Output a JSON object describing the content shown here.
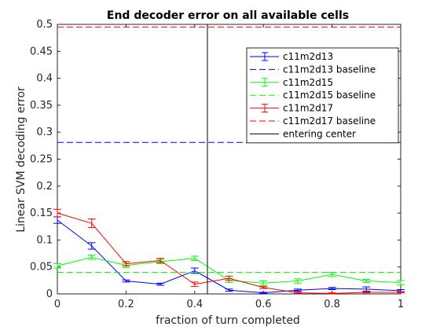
{
  "chart_data": {
    "type": "line",
    "title": "End decoder error on all available cells",
    "xlabel": "fraction of turn completed",
    "ylabel": "Linear SVM decoding error",
    "xlim": [
      0,
      1
    ],
    "ylim": [
      0,
      0.5
    ],
    "xticks": [
      "0",
      "0.2",
      "0.4",
      "0.6",
      "0.8",
      "1"
    ],
    "yticks": [
      "0",
      "0.05",
      "0.1",
      "0.15",
      "0.2",
      "0.25",
      "0.3",
      "0.35",
      "0.4",
      "0.45",
      "0.5"
    ],
    "grid": false,
    "legend_position": "top-right",
    "x": [
      0,
      0.1,
      0.2,
      0.3,
      0.4,
      0.5,
      0.6,
      0.7,
      0.8,
      0.9,
      1.0
    ],
    "series": [
      {
        "name": "c11m2d13",
        "color": "#0000ff",
        "style": "errorbar",
        "values": [
          0.137,
          0.089,
          0.024,
          0.018,
          0.043,
          0.007,
          0.002,
          0.007,
          0.01,
          0.009,
          0.006
        ],
        "errors": [
          0.006,
          0.006,
          0.002,
          0.002,
          0.005,
          0.002,
          0.001,
          0.002,
          0.002,
          0.004,
          0.002
        ]
      },
      {
        "name": "c11m2d13 baseline",
        "color": "#0000ff",
        "style": "dashed",
        "value": 0.281
      },
      {
        "name": "c11m2d15",
        "color": "#00ff00",
        "style": "errorbar",
        "values": [
          0.052,
          0.068,
          0.053,
          0.06,
          0.066,
          0.025,
          0.02,
          0.024,
          0.036,
          0.024,
          0.021
        ],
        "errors": [
          0.004,
          0.004,
          0.004,
          0.004,
          0.004,
          0.004,
          0.004,
          0.004,
          0.004,
          0.003,
          0.004
        ]
      },
      {
        "name": "c11m2d15 baseline",
        "color": "#00ff00",
        "style": "dashed",
        "value": 0.04
      },
      {
        "name": "c11m2d17",
        "color": "#ff0000",
        "style": "errorbar",
        "values": [
          0.15,
          0.131,
          0.056,
          0.062,
          0.018,
          0.029,
          0.012,
          0.002,
          0.001,
          0.003,
          0.003
        ],
        "errors": [
          0.007,
          0.008,
          0.004,
          0.004,
          0.004,
          0.004,
          0.002,
          0.001,
          0.001,
          0.001,
          0.001
        ]
      },
      {
        "name": "c11m2d17 baseline",
        "color": "#ff0000",
        "style": "dashed",
        "value": 0.495
      },
      {
        "name": "entering center",
        "color": "#000000",
        "style": "vertical",
        "x": 0.437
      }
    ]
  }
}
